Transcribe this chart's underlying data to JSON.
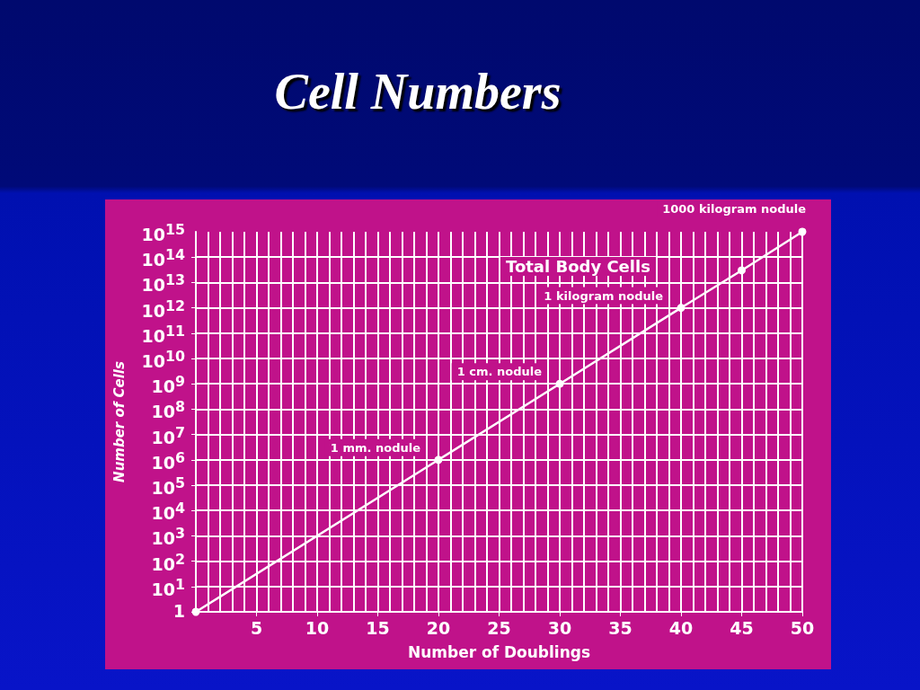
{
  "chart_data": {
    "type": "line",
    "title": "Cell Numbers",
    "xlabel": "Number of Doublings",
    "ylabel": "Number of Cells",
    "x": [
      0,
      20,
      30,
      40,
      45,
      50
    ],
    "series": [
      {
        "color": "#ffffff",
        "values": [
          1,
          1000000,
          1000000000,
          1000000000000,
          30000000000000,
          1000000000000000
        ]
      }
    ],
    "xlim": [
      0,
      50
    ],
    "xticks": [
      5,
      10,
      15,
      20,
      25,
      30,
      35,
      40,
      45,
      50
    ],
    "ylim": [
      1,
      1000000000000000
    ],
    "yticks": [
      1,
      {
        "value": 10,
        "label": "10$^{1}$"
      },
      {
        "value": 100,
        "label": "10$^{2}$"
      },
      {
        "value": 1000,
        "label": "10$^{3}$"
      },
      {
        "value": 10000,
        "label": "10$^{4}$"
      },
      {
        "value": 100000,
        "label": "10$^{5}$"
      },
      {
        "value": 1000000,
        "label": "10$^{6}$"
      },
      {
        "value": 10000000,
        "label": "10$^{7}$"
      },
      {
        "value": 100000000,
        "label": "10$^{8}$"
      },
      {
        "value": 1000000000,
        "label": "10$^{9}$"
      },
      {
        "value": 10000000000,
        "label": "10$^{10}$"
      },
      {
        "value": 100000000000,
        "label": "10$^{11}$"
      },
      {
        "value": 1000000000000,
        "label": "10$^{12}$"
      },
      {
        "value": 10000000000000,
        "label": "10$^{13}$"
      },
      {
        "value": 100000000000000,
        "label": "10$^{14}$"
      },
      {
        "value": 1000000000000000,
        "label": "10$^{15}$"
      }
    ],
    "log": "y",
    "grid": true,
    "marker": "circle",
    "line_style": "solid",
    "annotations": [
      {
        "text": "1 mm. nodule",
        "x": 20,
        "y": 1000000
      },
      {
        "text": "1 cm. nodule",
        "x": 30,
        "y": 1000000000
      },
      {
        "text": "1 kilogram nodule",
        "x": 40,
        "y": 1000000000000
      },
      "Total Body Cells",
      {
        "text": "1000 kilogram nodule",
        "x": 50,
        "y": 1000000000000000
      }
    ]
  }
}
